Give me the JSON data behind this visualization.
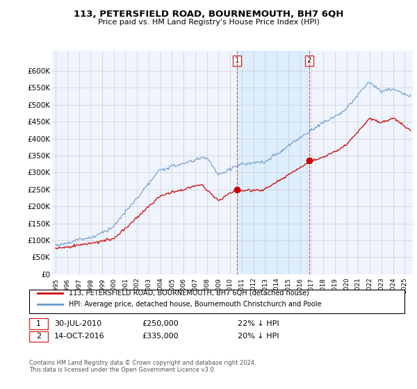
{
  "title": "113, PETERSFIELD ROAD, BOURNEMOUTH, BH7 6QH",
  "subtitle": "Price paid vs. HM Land Registry's House Price Index (HPI)",
  "legend_line1": "113, PETERSFIELD ROAD, BOURNEMOUTH, BH7 6QH (detached house)",
  "legend_line2": "HPI: Average price, detached house, Bournemouth Christchurch and Poole",
  "footnote": "Contains HM Land Registry data © Crown copyright and database right 2024.\nThis data is licensed under the Open Government Licence v3.0.",
  "sale1_date": "30-JUL-2010",
  "sale1_price": "£250,000",
  "sale1_hpi": "22% ↓ HPI",
  "sale1_label": "1",
  "sale2_date": "14-OCT-2016",
  "sale2_price": "£335,000",
  "sale2_hpi": "20% ↓ HPI",
  "sale2_label": "2",
  "red_color": "#cc0000",
  "blue_color": "#6699cc",
  "shade_color": "#ddeeff",
  "grid_color": "#cccccc",
  "background_color": "#ffffff",
  "plot_bg_color": "#f0f4ff",
  "ylim": [
    0,
    660000
  ],
  "yticks": [
    0,
    50000,
    100000,
    150000,
    200000,
    250000,
    300000,
    350000,
    400000,
    450000,
    500000,
    550000,
    600000
  ],
  "sale1_x": 2010.58,
  "sale1_y": 250000,
  "sale2_x": 2016.79,
  "sale2_y": 335000,
  "xmin": 1995,
  "xmax": 2025.5
}
